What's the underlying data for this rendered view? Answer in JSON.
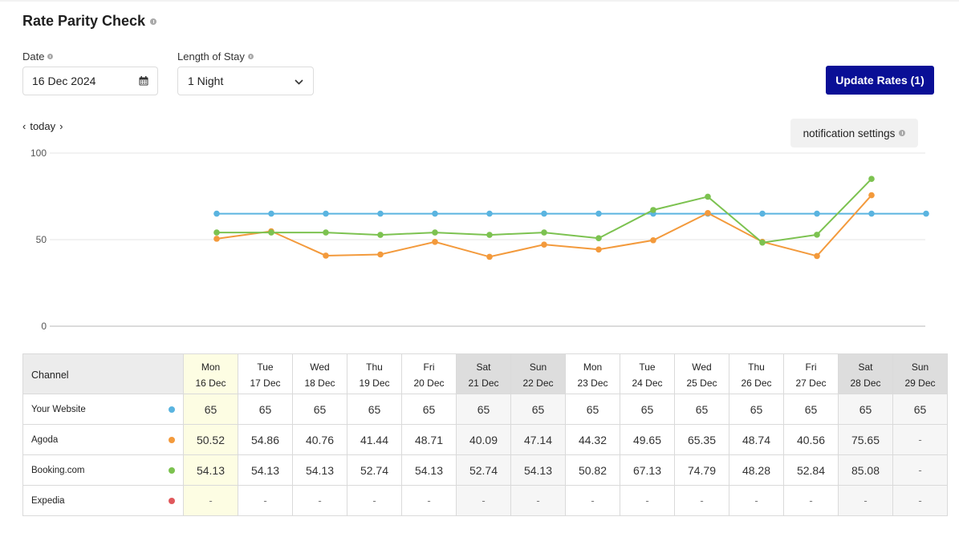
{
  "page": {
    "title": "Rate Parity Check"
  },
  "filters": {
    "date_label": "Date",
    "date_value": "16 Dec 2024",
    "los_label": "Length of Stay",
    "los_value": "1 Night"
  },
  "actions": {
    "update_rates": "Update Rates (1)",
    "notification_settings": "notification settings"
  },
  "nav": {
    "today": "today"
  },
  "colors": {
    "your_website": "#5ab4e0",
    "agoda": "#f39a3c",
    "booking": "#7cc250",
    "expedia": "#e0585c",
    "accent": "#0a0f96"
  },
  "chart_data": {
    "type": "line",
    "categories": [
      "16 Dec",
      "17 Dec",
      "18 Dec",
      "19 Dec",
      "20 Dec",
      "21 Dec",
      "22 Dec",
      "23 Dec",
      "24 Dec",
      "25 Dec",
      "26 Dec",
      "27 Dec",
      "28 Dec",
      "29 Dec"
    ],
    "yticks": [
      0,
      50,
      100
    ],
    "ylim": [
      0,
      100
    ],
    "grid": true,
    "series": [
      {
        "key": "your_website",
        "values": [
          65,
          65,
          65,
          65,
          65,
          65,
          65,
          65,
          65,
          65,
          65,
          65,
          65,
          65
        ]
      },
      {
        "key": "agoda",
        "values": [
          50.52,
          54.86,
          40.76,
          41.44,
          48.71,
          40.09,
          47.14,
          44.32,
          49.65,
          65.35,
          48.74,
          40.56,
          75.65,
          null
        ]
      },
      {
        "key": "booking",
        "values": [
          54.13,
          54.13,
          54.13,
          52.74,
          54.13,
          52.74,
          54.13,
          50.82,
          67.13,
          74.79,
          48.28,
          52.84,
          85.08,
          null
        ]
      }
    ]
  },
  "table": {
    "channel_header": "Channel",
    "days": [
      {
        "dow": "Mon",
        "date": "16 Dec",
        "kind": "today"
      },
      {
        "dow": "Tue",
        "date": "17 Dec",
        "kind": "weekday"
      },
      {
        "dow": "Wed",
        "date": "18 Dec",
        "kind": "weekday"
      },
      {
        "dow": "Thu",
        "date": "19 Dec",
        "kind": "weekday"
      },
      {
        "dow": "Fri",
        "date": "20 Dec",
        "kind": "weekday"
      },
      {
        "dow": "Sat",
        "date": "21 Dec",
        "kind": "weekend"
      },
      {
        "dow": "Sun",
        "date": "22 Dec",
        "kind": "weekend"
      },
      {
        "dow": "Mon",
        "date": "23 Dec",
        "kind": "weekday"
      },
      {
        "dow": "Tue",
        "date": "24 Dec",
        "kind": "weekday"
      },
      {
        "dow": "Wed",
        "date": "25 Dec",
        "kind": "weekday"
      },
      {
        "dow": "Thu",
        "date": "26 Dec",
        "kind": "weekday"
      },
      {
        "dow": "Fri",
        "date": "27 Dec",
        "kind": "weekday"
      },
      {
        "dow": "Sat",
        "date": "28 Dec",
        "kind": "weekend"
      },
      {
        "dow": "Sun",
        "date": "29 Dec",
        "kind": "weekend"
      }
    ],
    "rows": [
      {
        "channel": "Your Website",
        "color_key": "your_website",
        "values": [
          "65",
          "65",
          "65",
          "65",
          "65",
          "65",
          "65",
          "65",
          "65",
          "65",
          "65",
          "65",
          "65",
          "65"
        ]
      },
      {
        "channel": "Agoda",
        "color_key": "agoda",
        "values": [
          "50.52",
          "54.86",
          "40.76",
          "41.44",
          "48.71",
          "40.09",
          "47.14",
          "44.32",
          "49.65",
          "65.35",
          "48.74",
          "40.56",
          "75.65",
          "-"
        ]
      },
      {
        "channel": "Booking.com",
        "color_key": "booking",
        "values": [
          "54.13",
          "54.13",
          "54.13",
          "52.74",
          "54.13",
          "52.74",
          "54.13",
          "50.82",
          "67.13",
          "74.79",
          "48.28",
          "52.84",
          "85.08",
          "-"
        ]
      },
      {
        "channel": "Expedia",
        "color_key": "expedia",
        "values": [
          "-",
          "-",
          "-",
          "-",
          "-",
          "-",
          "-",
          "-",
          "-",
          "-",
          "-",
          "-",
          "-",
          "-"
        ]
      }
    ]
  }
}
